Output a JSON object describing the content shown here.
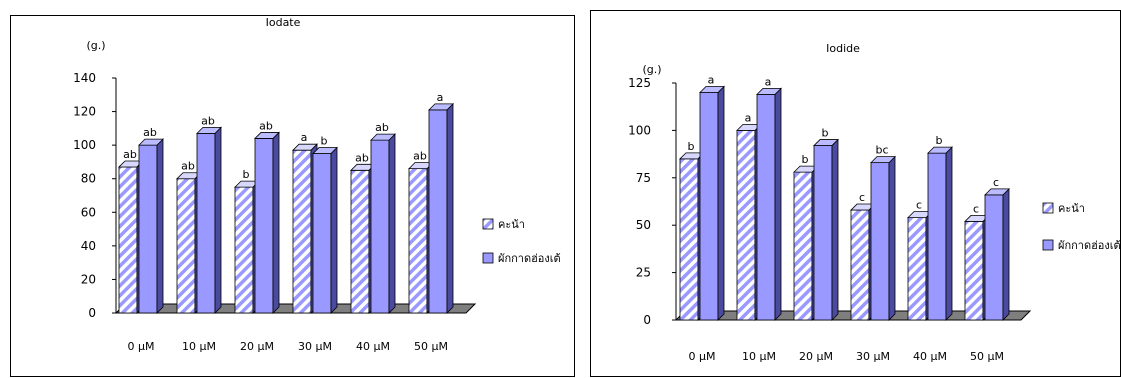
{
  "colors": {
    "bar_front": "#9999ff",
    "bar_side": "#4a4a9e",
    "bar_top": "#bbbbff",
    "hatch": "#9999ff",
    "floor": "#7f7f7f",
    "axis": "#000000"
  },
  "chart_data": [
    {
      "type": "bar",
      "title": "Iodate",
      "ylabel": "(g.)",
      "categories": [
        "0 μM",
        "10 μM",
        "20 μM",
        "30 μM",
        "40 μM",
        "50 μM"
      ],
      "ylim": [
        0,
        140
      ],
      "yticks": [
        "0",
        "20",
        "40",
        "60",
        "80",
        "100",
        "120",
        "140"
      ],
      "series": [
        {
          "name": "คะน้า",
          "values": [
            87,
            80,
            75,
            97,
            85,
            86
          ],
          "labels": [
            "ab",
            "ab",
            "b",
            "a",
            "ab",
            "ab"
          ]
        },
        {
          "name": "ผักกาดฮ่องเต้",
          "values": [
            100,
            107,
            104,
            95,
            103,
            121
          ],
          "labels": [
            "ab",
            "ab",
            "ab",
            "b",
            "ab",
            "a"
          ]
        }
      ],
      "legend_position": "right"
    },
    {
      "type": "bar",
      "title": "Iodide",
      "ylabel": "(g.)",
      "categories": [
        "0 μM",
        "10 μM",
        "20 μM",
        "30 μM",
        "40 μM",
        "50 μM"
      ],
      "ylim": [
        0,
        125
      ],
      "yticks": [
        "0",
        "25",
        "50",
        "75",
        "100",
        "125"
      ],
      "series": [
        {
          "name": "คะน้า",
          "values": [
            85,
            100,
            78,
            58,
            54,
            52
          ],
          "labels": [
            "b",
            "a",
            "b",
            "c",
            "c",
            "c"
          ]
        },
        {
          "name": "ผักกาดฮ่องเต้",
          "values": [
            120,
            119,
            92,
            83,
            88,
            66
          ],
          "labels": [
            "a",
            "a",
            "b",
            "bc",
            "b",
            "c"
          ]
        }
      ],
      "legend_position": "right"
    }
  ]
}
